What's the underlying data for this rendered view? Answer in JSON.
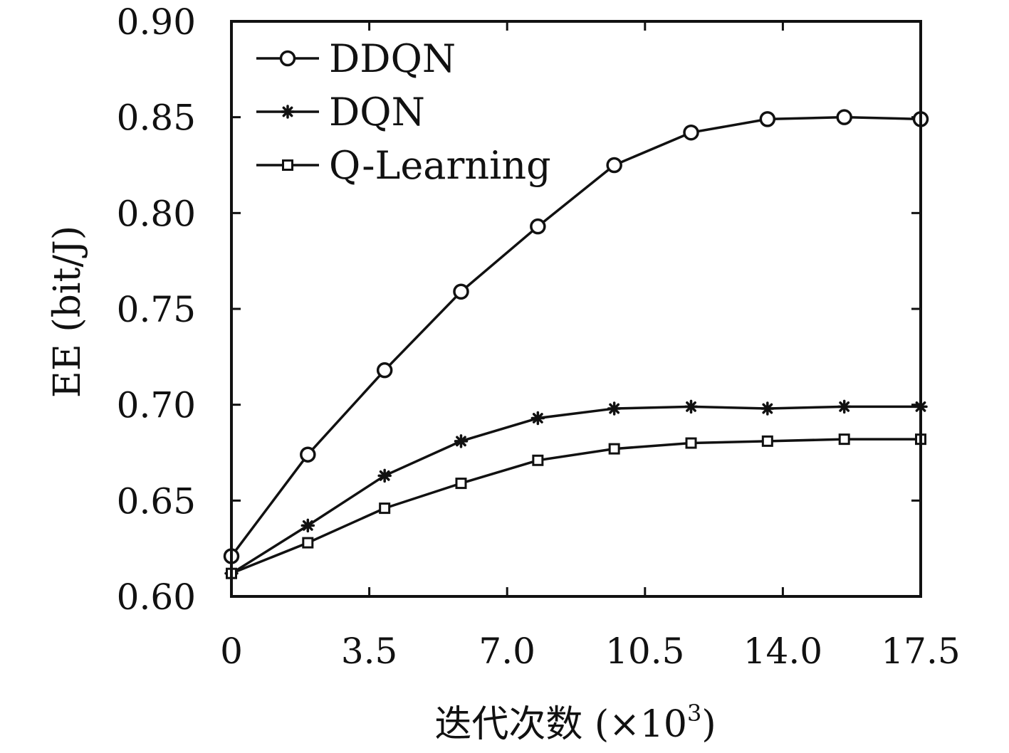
{
  "chart_data": {
    "type": "line",
    "xlabel_main": "迭代次数 (×10",
    "xlabel_sup": "3",
    "xlabel_close": ")",
    "ylabel": "EE (bit/J)",
    "xlim": [
      0,
      17.5
    ],
    "ylim": [
      0.6,
      0.9
    ],
    "xticks": [
      0,
      3.5,
      7.0,
      10.5,
      14.0,
      17.5
    ],
    "xtick_labels": [
      "0",
      "3.5",
      "7.0",
      "10.5",
      "14.0",
      "17.5"
    ],
    "yticks": [
      0.6,
      0.65,
      0.7,
      0.75,
      0.8,
      0.85,
      0.9
    ],
    "ytick_labels": [
      "0.60",
      "0.65",
      "0.70",
      "0.75",
      "0.80",
      "0.85",
      "0.90"
    ],
    "grid": false,
    "legend_position": "top-left",
    "x": [
      0,
      1.94,
      3.89,
      5.83,
      7.78,
      9.72,
      11.67,
      13.61,
      15.56,
      17.5
    ],
    "series": [
      {
        "name": "DDQN",
        "marker": "circle",
        "values": [
          0.621,
          0.674,
          0.718,
          0.759,
          0.793,
          0.825,
          0.842,
          0.849,
          0.85,
          0.849
        ]
      },
      {
        "name": "DQN",
        "marker": "star",
        "values": [
          0.612,
          0.637,
          0.663,
          0.681,
          0.693,
          0.698,
          0.699,
          0.698,
          0.699,
          0.699
        ]
      },
      {
        "name": "Q-Learning",
        "marker": "square",
        "values": [
          0.612,
          0.628,
          0.646,
          0.659,
          0.671,
          0.677,
          0.68,
          0.681,
          0.682,
          0.682
        ]
      }
    ]
  }
}
